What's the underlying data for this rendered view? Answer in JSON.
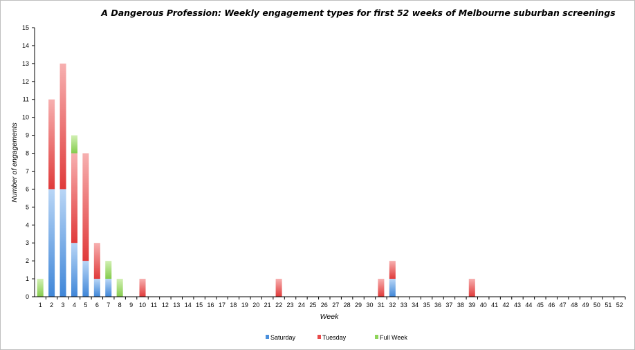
{
  "chart_data": {
    "type": "bar",
    "stacked": true,
    "title": "A Dangerous Profession: Weekly engagement types for first 52 weeks of Melbourne suburban screenings",
    "xlabel": "Week",
    "ylabel": "Number of engagements",
    "ylim": [
      0,
      15
    ],
    "yticks": [
      "0",
      "1",
      "2",
      "3",
      "4",
      "5",
      "6",
      "7",
      "8",
      "9",
      "10",
      "11",
      "12",
      "13",
      "14",
      "15"
    ],
    "categories": [
      "1",
      "2",
      "3",
      "4",
      "5",
      "6",
      "7",
      "8",
      "9",
      "10",
      "11",
      "12",
      "13",
      "14",
      "15",
      "16",
      "17",
      "18",
      "19",
      "20",
      "21",
      "22",
      "23",
      "24",
      "25",
      "26",
      "27",
      "28",
      "29",
      "30",
      "31",
      "32",
      "33",
      "34",
      "35",
      "36",
      "37",
      "38",
      "39",
      "40",
      "41",
      "42",
      "43",
      "44",
      "45",
      "46",
      "47",
      "48",
      "49",
      "50",
      "51",
      "52"
    ],
    "series": [
      {
        "name": "Saturday",
        "color": "#4a8fdc",
        "values": [
          0,
          6,
          6,
          3,
          2,
          1,
          1,
          0,
          0,
          0,
          0,
          0,
          0,
          0,
          0,
          0,
          0,
          0,
          0,
          0,
          0,
          0,
          0,
          0,
          0,
          0,
          0,
          0,
          0,
          0,
          0,
          1,
          0,
          0,
          0,
          0,
          0,
          0,
          0,
          0,
          0,
          0,
          0,
          0,
          0,
          0,
          0,
          0,
          0,
          0,
          0,
          0
        ]
      },
      {
        "name": "Tuesday",
        "color": "#e84a4a",
        "values": [
          0,
          5,
          7,
          5,
          6,
          2,
          0,
          0,
          0,
          1,
          0,
          0,
          0,
          0,
          0,
          0,
          0,
          0,
          0,
          0,
          0,
          1,
          0,
          0,
          0,
          0,
          0,
          0,
          0,
          0,
          1,
          1,
          0,
          0,
          0,
          0,
          0,
          0,
          1,
          0,
          0,
          0,
          0,
          0,
          0,
          0,
          0,
          0,
          0,
          0,
          0,
          0
        ]
      },
      {
        "name": "Full Week",
        "color": "#8fd45a",
        "values": [
          1,
          0,
          0,
          1,
          0,
          0,
          1,
          1,
          0,
          0,
          0,
          0,
          0,
          0,
          0,
          0,
          0,
          0,
          0,
          0,
          0,
          0,
          0,
          0,
          0,
          0,
          0,
          0,
          0,
          0,
          0,
          0,
          0,
          0,
          0,
          0,
          0,
          0,
          0,
          0,
          0,
          0,
          0,
          0,
          0,
          0,
          0,
          0,
          0,
          0,
          0,
          0
        ]
      }
    ],
    "grid": false,
    "legend_position": "bottom"
  }
}
